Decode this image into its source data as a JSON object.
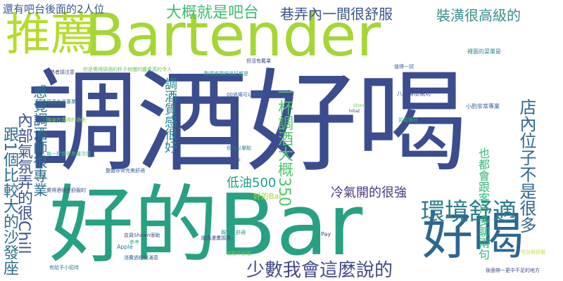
{
  "colors": {
    "background": "#ffffff",
    "palette": [
      "#404a87",
      "#35609a",
      "#2c7d8e",
      "#25998a",
      "#3ab479",
      "#6cc55a",
      "#9fd642",
      "#c8e026",
      "#2b6f8f"
    ]
  },
  "words": [
    {
      "text": "調酒好喝",
      "color": "#3b4d8e"
    },
    {
      "text": "Bartender",
      "color": "#a6d635"
    },
    {
      "text": "好的Bar",
      "color": "#28a182"
    },
    {
      "text": "推薦",
      "color": "#b6dc2a"
    },
    {
      "text": "好喝",
      "color": "#2f6690"
    },
    {
      "text": "環境舒適",
      "color": "#2e7b8e"
    },
    {
      "text": "少數我會這麼說的",
      "color": "#404a87"
    },
    {
      "text": "跟1個比較大的沙發座",
      "color": "#2e6c8e"
    },
    {
      "text": "大概就是吧台",
      "color": "#3fbc73"
    },
    {
      "text": "巷弄內一間很舒服",
      "color": "#39558c"
    },
    {
      "text": "裝潢很高級的",
      "color": "#3b8e8c"
    },
    {
      "text": "還有吧台後面的2人位",
      "color": "#365c8d"
    },
    {
      "text": "調酒質感很好",
      "color": "#26828e"
    },
    {
      "text": "內部氣氛弄的很Chill",
      "color": "#3b528b"
    },
    {
      "text": "感覺調酒師很專業",
      "color": "#2e6f8e"
    },
    {
      "text": "店內位子不是很多",
      "color": "#31688e"
    },
    {
      "text": "一杯調酒大概350",
      "color": "#52c569"
    },
    {
      "text": "低油500",
      "color": "#1fa088"
    },
    {
      "text": "冷氣開的很強",
      "color": "#443a83"
    },
    {
      "text": "也都會跟客戶多聊兩句",
      "color": "#35b779"
    },
    {
      "text": "好的Bar",
      "color": "#9fd642"
    },
    {
      "text": "八大得很親切",
      "color": "#404a87"
    },
    {
      "text": "小酌非常專業",
      "color": "#35609a"
    },
    {
      "text": "調酒也很專業",
      "color": "#2c7d8e"
    },
    {
      "text": "隨身在弄得的酒吧",
      "color": "#7ad151"
    },
    {
      "text": "每一杯都很有層次感",
      "color": "#3ab479"
    },
    {
      "text": "整體非常完美舒適",
      "color": "#35609a"
    },
    {
      "text": "覺得酒很是舒服的",
      "color": "#404a87"
    },
    {
      "text": "但是覺得調酒的杯子稍慢的醬看真的令人",
      "color": "#6cc55a"
    },
    {
      "text": "對得來環境很好都是",
      "color": "#25998a"
    },
    {
      "text": "00過場可以等待",
      "color": "#35609a"
    },
    {
      "text": "有收信用卡",
      "color": "#404a87"
    },
    {
      "text": "但可以單點",
      "color": "#2c7d8e"
    },
    {
      "text": "參考",
      "color": "#3ab479"
    },
    {
      "text": "Pay",
      "color": "#404a87"
    },
    {
      "text": "Apple",
      "color": "#2c7d8e"
    },
    {
      "text": "店員Shawn很助",
      "color": "#404a87"
    },
    {
      "text": "消費過程很滿意",
      "color": "#35609a"
    },
    {
      "text": "圖為漫畫調酒",
      "color": "#404a87"
    },
    {
      "text": "親切又舒適",
      "color": "#25998a"
    },
    {
      "text": "有點不舒服",
      "color": "#6cc55a"
    },
    {
      "text": "後面帶一更中不足的地方",
      "color": "#404a87"
    },
    {
      "text": "怕熱者請注意",
      "color": "#404a87"
    },
    {
      "text": "有給予小招待",
      "color": "#2c7d8e"
    },
    {
      "text": "但沒有戴罩",
      "color": "#404a87"
    },
    {
      "text": "Stone",
      "color": "#6cc55a"
    },
    {
      "text": "hihat",
      "color": "#404a87"
    },
    {
      "text": "裡面的菜單是",
      "color": "#2c7d8e"
    },
    {
      "text": "值得一試",
      "color": "#35609a"
    },
    {
      "text": "氣氛很好",
      "color": "#3ab479"
    },
    {
      "text": "吧台很舒服",
      "color": "#c8e026"
    }
  ]
}
